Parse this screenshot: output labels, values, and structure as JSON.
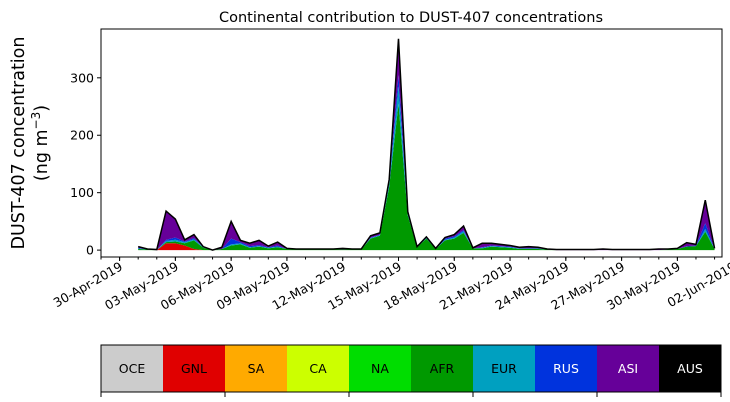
{
  "chart_data": {
    "type": "area",
    "stacked": true,
    "title": "Continental contribution to DUST-407 concentrations",
    "ylabel_line1": "DUST-407 concentration",
    "ylabel_unit_prefix": "(ng m",
    "ylabel_unit_exp": "−3",
    "ylabel_unit_suffix": ")",
    "xlabel": "",
    "ylim": [
      -12,
      385
    ],
    "xlim": [
      -1.0,
      32.4
    ],
    "yticks": [
      "0",
      "100",
      "200",
      "300"
    ],
    "ytick_values": [
      0,
      100,
      200,
      300
    ],
    "xtick_labels": [
      "30-Apr-2019",
      "03-May-2019",
      "06-May-2019",
      "09-May-2019",
      "12-May-2019",
      "15-May-2019",
      "18-May-2019",
      "21-May-2019",
      "24-May-2019",
      "27-May-2019",
      "30-May-2019",
      "02-Jun-2019"
    ],
    "xtick_values": [
      0,
      3,
      6,
      9,
      12,
      15,
      18,
      21,
      24,
      27,
      30,
      33
    ],
    "x_unit": "days after 30-Apr-2019",
    "minor_tick_step": 1,
    "grid": false,
    "legend": "colorbar below plot",
    "x": [
      1.0,
      1.5,
      2.0,
      2.5,
      3.0,
      3.5,
      4.0,
      4.5,
      5.0,
      5.5,
      6.0,
      6.5,
      7.0,
      7.5,
      8.0,
      8.5,
      9.0,
      9.5,
      10.0,
      10.5,
      11.0,
      11.5,
      12.0,
      12.5,
      13.0,
      13.5,
      14.0,
      14.5,
      15.0,
      15.5,
      16.0,
      16.5,
      17.0,
      17.5,
      18.0,
      18.5,
      19.0,
      19.5,
      20.0,
      20.5,
      21.0,
      21.5,
      22.0,
      22.5,
      23.0,
      23.5,
      24.0,
      24.5,
      25.0,
      25.5,
      26.0,
      26.5,
      27.0,
      27.5,
      28.0,
      28.5,
      29.0,
      29.5,
      30.0,
      30.5,
      31.0,
      31.5,
      32.0
    ],
    "series": [
      {
        "name": "OCE",
        "color": "#cccccc",
        "values": [
          0,
          0,
          0,
          0,
          0,
          0,
          0,
          0,
          0,
          0,
          0,
          0,
          0,
          0,
          0,
          0,
          0,
          0,
          0,
          0,
          0,
          0,
          0,
          0,
          0,
          0,
          0,
          0,
          0,
          0,
          0,
          0,
          0,
          0,
          0,
          0,
          0,
          0,
          0,
          0,
          0,
          0,
          0,
          0,
          0,
          0,
          0,
          0,
          0,
          0,
          0,
          0,
          0,
          0,
          0,
          0,
          0,
          0,
          0,
          0,
          0,
          0,
          0
        ]
      },
      {
        "name": "GNL",
        "color": "#e00000",
        "values": [
          0,
          0,
          0,
          12,
          12,
          8,
          2,
          0,
          0,
          0,
          0,
          0,
          0,
          0,
          0,
          0,
          0,
          0,
          0,
          0,
          0,
          0,
          0,
          0,
          0,
          0,
          0,
          0,
          0,
          0,
          0,
          0,
          0,
          0,
          0,
          0,
          0,
          0,
          0,
          0,
          0,
          0,
          0,
          0,
          0,
          0,
          0,
          0,
          0,
          0,
          0,
          0,
          0,
          0,
          0,
          0,
          0,
          0,
          0,
          0,
          0,
          0,
          0
        ]
      },
      {
        "name": "SA",
        "color": "#ffaa00",
        "values": [
          0,
          0,
          0,
          0,
          0,
          0,
          0,
          0,
          0,
          0,
          0,
          0,
          0,
          0,
          0,
          0,
          0,
          0,
          0,
          0,
          0,
          0,
          0,
          0,
          0,
          0,
          0,
          0,
          0,
          0,
          0,
          0,
          0,
          0,
          0,
          0,
          0,
          0,
          0,
          0,
          0,
          0,
          0,
          0,
          0,
          0,
          0,
          0,
          0,
          0,
          0,
          0,
          0,
          0,
          0,
          0,
          0,
          0,
          0,
          0,
          0,
          0,
          0
        ]
      },
      {
        "name": "CA",
        "color": "#ccff00",
        "values": [
          0,
          0,
          0,
          0,
          0,
          0,
          0,
          0,
          0,
          0,
          0,
          0,
          0,
          0,
          0,
          0,
          0,
          0,
          0,
          0,
          0,
          0,
          0,
          0,
          0,
          0,
          0,
          0,
          0,
          0,
          0,
          0,
          0,
          0,
          0,
          0,
          0,
          0,
          0,
          0,
          0,
          0,
          0,
          0,
          0,
          0,
          0,
          0,
          0,
          0,
          0,
          0,
          0,
          0,
          0,
          0,
          0,
          0,
          0,
          0,
          0,
          0,
          0
        ]
      },
      {
        "name": "NA",
        "color": "#00dd00",
        "values": [
          0,
          0,
          0,
          0,
          0,
          0,
          0,
          0,
          0,
          0,
          0,
          0,
          0,
          0,
          0,
          0,
          0,
          0,
          0,
          0,
          0,
          0,
          0,
          0,
          0,
          0,
          0,
          0,
          0,
          0,
          0,
          0,
          0,
          0,
          0,
          0,
          0,
          0,
          0,
          0,
          0,
          0,
          0,
          0,
          0,
          0,
          0,
          0,
          0,
          0,
          0,
          0,
          0,
          0,
          0,
          0,
          0,
          0,
          0,
          0,
          0,
          0,
          0
        ]
      },
      {
        "name": "AFR",
        "color": "#009900",
        "values": [
          2,
          1,
          0,
          2,
          3,
          4,
          15,
          4,
          0,
          2,
          8,
          10,
          4,
          6,
          3,
          5,
          2,
          1,
          1,
          1,
          1,
          1,
          1,
          1,
          1,
          20,
          25,
          110,
          255,
          60,
          5,
          20,
          2,
          17,
          20,
          30,
          3,
          3,
          6,
          5,
          4,
          2,
          2,
          2,
          1,
          0,
          0,
          0,
          0,
          0,
          0,
          0,
          0,
          0,
          0,
          0,
          0,
          1,
          2,
          6,
          7,
          32,
          2
        ]
      },
      {
        "name": "EUR",
        "color": "#00a0c0",
        "values": [
          1,
          0,
          0,
          2,
          3,
          2,
          2,
          1,
          0,
          0,
          2,
          2,
          1,
          1,
          1,
          1,
          0,
          0,
          0,
          0,
          0,
          0,
          0,
          0,
          0,
          1,
          1,
          6,
          30,
          4,
          0,
          1,
          0,
          1,
          2,
          3,
          0,
          1,
          1,
          1,
          1,
          1,
          1,
          1,
          0,
          0,
          0,
          0,
          0,
          0,
          0,
          0,
          0,
          0,
          0,
          0,
          0,
          0,
          0,
          0,
          0,
          5,
          0
        ]
      },
      {
        "name": "RUS",
        "color": "#0033dd",
        "values": [
          1,
          0,
          0,
          2,
          4,
          1,
          2,
          0,
          0,
          0,
          10,
          2,
          2,
          2,
          1,
          2,
          0,
          0,
          0,
          0,
          0,
          0,
          0,
          0,
          0,
          1,
          1,
          2,
          20,
          0,
          0,
          1,
          0,
          2,
          2,
          2,
          0,
          1,
          1,
          1,
          1,
          0,
          0,
          0,
          0,
          0,
          0,
          0,
          0,
          0,
          0,
          0,
          0,
          0,
          0,
          0,
          0,
          0,
          0,
          1,
          1,
          10,
          0
        ]
      },
      {
        "name": "ASI",
        "color": "#660099",
        "values": [
          2,
          1,
          1,
          50,
          32,
          3,
          6,
          1,
          0,
          3,
          30,
          3,
          5,
          8,
          2,
          6,
          1,
          1,
          1,
          1,
          1,
          1,
          2,
          1,
          1,
          3,
          3,
          5,
          63,
          3,
          1,
          1,
          1,
          2,
          3,
          7,
          1,
          7,
          4,
          3,
          2,
          2,
          3,
          2,
          1,
          1,
          1,
          1,
          1,
          1,
          2,
          1,
          1,
          1,
          1,
          1,
          2,
          1,
          1,
          6,
          2,
          40,
          1
        ]
      },
      {
        "name": "AUS",
        "color": "#000000",
        "values": [
          0,
          0,
          0,
          0,
          0,
          0,
          0,
          0,
          0,
          0,
          0,
          0,
          0,
          0,
          0,
          0,
          0,
          0,
          0,
          0,
          0,
          0,
          0,
          0,
          0,
          0,
          0,
          0,
          0,
          0,
          0,
          0,
          0,
          0,
          0,
          0,
          0,
          0,
          0,
          0,
          0,
          0,
          0,
          0,
          0,
          0,
          0,
          0,
          0,
          0,
          0,
          0,
          0,
          0,
          0,
          0,
          0,
          0,
          0,
          0,
          0,
          0,
          0
        ]
      }
    ]
  }
}
